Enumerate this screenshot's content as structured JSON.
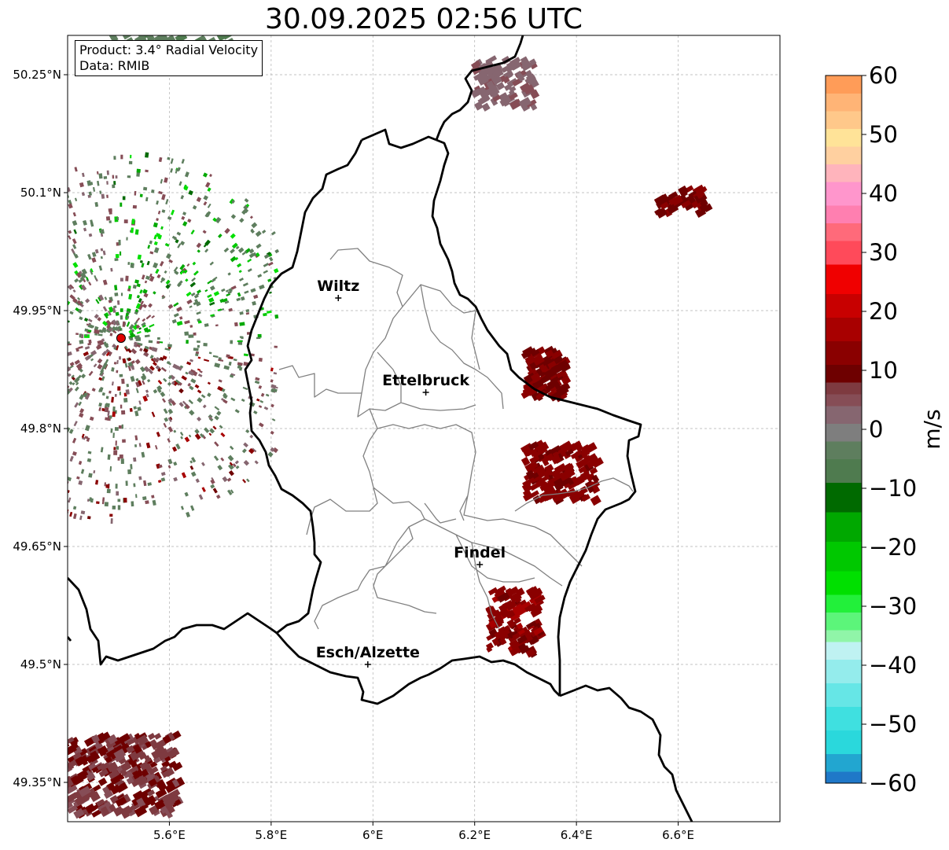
{
  "title": "30.09.2025 02:56 UTC",
  "info": {
    "product": "Product: 3.4° Radial Velocity",
    "source": "Data: RMIB"
  },
  "map": {
    "lon_range": [
      5.4,
      6.8
    ],
    "lat_range": [
      49.3,
      50.3
    ],
    "lon_ticks": [
      {
        "value": 5.6,
        "label": "5.6°E"
      },
      {
        "value": 5.8,
        "label": "5.8°E"
      },
      {
        "value": 6.0,
        "label": "6°E"
      },
      {
        "value": 6.2,
        "label": "6.2°E"
      },
      {
        "value": 6.4,
        "label": "6.4°E"
      },
      {
        "value": 6.6,
        "label": "6.6°E"
      }
    ],
    "lat_ticks": [
      {
        "value": 50.25,
        "label": "50.25°N"
      },
      {
        "value": 50.1,
        "label": "50.1°N"
      },
      {
        "value": 49.95,
        "label": "49.95°N"
      },
      {
        "value": 49.8,
        "label": "49.8°N"
      },
      {
        "value": 49.65,
        "label": "49.65°N"
      },
      {
        "value": 49.5,
        "label": "49.5°N"
      },
      {
        "value": 49.35,
        "label": "49.35°N"
      }
    ],
    "grid": true,
    "radar_site": {
      "lon": 5.505,
      "lat": 49.915,
      "color": "#e00000"
    },
    "cities": [
      {
        "name": "Wiltz",
        "lon": 5.932,
        "lat": 49.966
      },
      {
        "name": "Ettelbruck",
        "lon": 6.104,
        "lat": 49.846
      },
      {
        "name": "Findel",
        "lon": 6.21,
        "lat": 49.627
      },
      {
        "name": "Esch/Alzette",
        "lon": 5.99,
        "lat": 49.5
      }
    ]
  },
  "colorbar": {
    "label": "m/s",
    "vmin": -60,
    "vmax": 60,
    "ticks": [
      60,
      50,
      40,
      30,
      20,
      10,
      0,
      -10,
      -20,
      -30,
      -40,
      -50,
      -60
    ],
    "tick_labels": [
      "60",
      "50",
      "40",
      "30",
      "20",
      "10",
      "0",
      "−10",
      "−20",
      "−30",
      "−40",
      "−50",
      "−60"
    ],
    "stops": [
      {
        "from": -60,
        "to": -58,
        "color": "#1f78c8"
      },
      {
        "from": -58,
        "to": -55,
        "color": "#22a6d0"
      },
      {
        "from": -55,
        "to": -51,
        "color": "#2ad8dc"
      },
      {
        "from": -51,
        "to": -47,
        "color": "#3fe0e0"
      },
      {
        "from": -47,
        "to": -43,
        "color": "#66e6e6"
      },
      {
        "from": -43,
        "to": -39,
        "color": "#94ecec"
      },
      {
        "from": -39,
        "to": -36,
        "color": "#bff2f2"
      },
      {
        "from": -36,
        "to": -34,
        "color": "#90f5a8"
      },
      {
        "from": -34,
        "to": -31,
        "color": "#5cf57a"
      },
      {
        "from": -31,
        "to": -28,
        "color": "#22f03a"
      },
      {
        "from": -28,
        "to": -24,
        "color": "#00e000"
      },
      {
        "from": -24,
        "to": -19,
        "color": "#00c800"
      },
      {
        "from": -19,
        "to": -14,
        "color": "#00a800"
      },
      {
        "from": -14,
        "to": -9,
        "color": "#006a00"
      },
      {
        "from": -9,
        "to": -5,
        "color": "#4f7b4f"
      },
      {
        "from": -5,
        "to": -2,
        "color": "#5e7e5e"
      },
      {
        "from": -2,
        "to": 1,
        "color": "#7e7e7e"
      },
      {
        "from": 1,
        "to": 4,
        "color": "#866670"
      },
      {
        "from": 4,
        "to": 6,
        "color": "#864d56"
      },
      {
        "from": 6,
        "to": 8,
        "color": "#7e3a40"
      },
      {
        "from": 8,
        "to": 11,
        "color": "#6e0000"
      },
      {
        "from": 11,
        "to": 15,
        "color": "#8a0000"
      },
      {
        "from": 15,
        "to": 19,
        "color": "#a80000"
      },
      {
        "from": 19,
        "to": 23,
        "color": "#c80000"
      },
      {
        "from": 23,
        "to": 28,
        "color": "#f00000"
      },
      {
        "from": 28,
        "to": 32,
        "color": "#ff4a5a"
      },
      {
        "from": 32,
        "to": 35,
        "color": "#ff6a7a"
      },
      {
        "from": 35,
        "to": 38,
        "color": "#ff7fb0"
      },
      {
        "from": 38,
        "to": 42,
        "color": "#ff96cc"
      },
      {
        "from": 42,
        "to": 45,
        "color": "#ffb4bc"
      },
      {
        "from": 45,
        "to": 48,
        "color": "#ffd0a0"
      },
      {
        "from": 48,
        "to": 51,
        "color": "#ffe398"
      },
      {
        "from": 51,
        "to": 54,
        "color": "#ffc88a"
      },
      {
        "from": 54,
        "to": 57,
        "color": "#ffb476"
      },
      {
        "from": 57,
        "to": 60,
        "color": "#ff9c58"
      }
    ]
  },
  "echoes": [
    {
      "name": "echo-nw-top",
      "lon": 5.6,
      "lat": 50.28,
      "spread": [
        0.12,
        0.02
      ],
      "v_range": [
        -6,
        -3
      ],
      "count": 90
    },
    {
      "name": "echo-north-band",
      "lon": 6.25,
      "lat": 50.24,
      "spread": [
        0.06,
        0.03
      ],
      "v_range": [
        1,
        5
      ],
      "count": 110
    },
    {
      "name": "echo-ne-streak",
      "lon": 6.6,
      "lat": 50.09,
      "spread": [
        0.05,
        0.015
      ],
      "v_range": [
        9,
        13
      ],
      "count": 45
    },
    {
      "name": "echo-east-upper",
      "lon": 6.33,
      "lat": 49.87,
      "spread": [
        0.04,
        0.03
      ],
      "v_range": [
        8,
        13
      ],
      "count": 120
    },
    {
      "name": "echo-east-middle",
      "lon": 6.36,
      "lat": 49.745,
      "spread": [
        0.07,
        0.035
      ],
      "v_range": [
        10,
        15
      ],
      "count": 150
    },
    {
      "name": "echo-south-cluster",
      "lon": 6.27,
      "lat": 49.555,
      "spread": [
        0.05,
        0.04
      ],
      "v_range": [
        10,
        16
      ],
      "count": 120
    },
    {
      "name": "echo-sw-corner",
      "lon": 5.5,
      "lat": 49.36,
      "spread": [
        0.11,
        0.05
      ],
      "v_range": [
        5,
        10
      ],
      "count": 300
    }
  ]
}
